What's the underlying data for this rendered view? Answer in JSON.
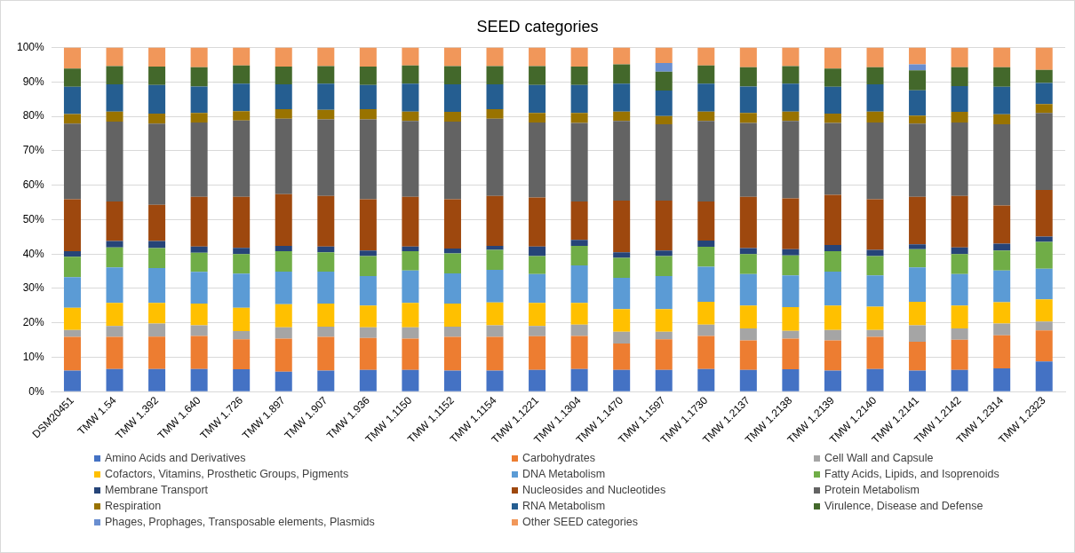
{
  "chart_data": {
    "type": "bar",
    "title": "SEED categories",
    "stacked": true,
    "grid": "y",
    "legend": "bottom",
    "ylim": [
      0,
      100
    ],
    "yticks": [
      {
        "value": 0,
        "label": "0%"
      },
      {
        "value": 10,
        "label": "10%"
      },
      {
        "value": 20,
        "label": "20%"
      },
      {
        "value": 30,
        "label": "30%"
      },
      {
        "value": 40,
        "label": "40%"
      },
      {
        "value": 50,
        "label": "50%"
      },
      {
        "value": 60,
        "label": "60%"
      },
      {
        "value": 70,
        "label": "70%"
      },
      {
        "value": 80,
        "label": "80%"
      },
      {
        "value": 90,
        "label": "90%"
      },
      {
        "value": 100,
        "label": "100%"
      }
    ],
    "categories": [
      "DSM20451",
      "TMW 1.54",
      "TMW 1.392",
      "TMW 1.640",
      "TMW 1.726",
      "TMW 1.897",
      "TMW 1.907",
      "TMW 1.936",
      "TMW 1.1150",
      "TMW 1.1152",
      "TMW 1.1154",
      "TMW 1.1221",
      "TMW 1.1304",
      "TMW 1.1470",
      "TMW 1.1597",
      "TMW 1.1730",
      "TMW 1.2137",
      "TMW 1.2138",
      "TMW 1.2139",
      "TMW 1.2140",
      "TMW 1.2141",
      "TMW 1.2142",
      "TMW 1.2314",
      "TMW 1.2323"
    ],
    "series": [
      {
        "name": "Amino Acids and Derivatives",
        "color": "#4472c4",
        "values": [
          6.1,
          6.6,
          6.6,
          6.6,
          6.5,
          5.8,
          6.1,
          6.3,
          6.3,
          6.1,
          6.1,
          6.3,
          6.6,
          6.3,
          6.3,
          6.6,
          6.3,
          6.5,
          6.1,
          6.6,
          6.1,
          6.3,
          6.8,
          8.8
        ]
      },
      {
        "name": "Carbohydrates",
        "color": "#ed7d31",
        "values": [
          9.8,
          9.3,
          9.4,
          9.6,
          8.7,
          9.6,
          9.8,
          9.3,
          9.1,
          9.8,
          9.8,
          9.8,
          9.6,
          7.7,
          8.9,
          9.6,
          8.6,
          8.9,
          8.8,
          9.3,
          8.4,
          8.8,
          9.6,
          9.0
        ]
      },
      {
        "name": "Cell Wall and Capsule",
        "color": "#a5a5a5",
        "values": [
          2.0,
          3.2,
          3.8,
          3.1,
          2.4,
          3.3,
          3.0,
          3.1,
          3.3,
          3.0,
          3.4,
          3.0,
          3.3,
          3.4,
          2.2,
          3.3,
          3.5,
          2.3,
          3.0,
          2.0,
          4.8,
          3.3,
          3.4,
          2.6
        ]
      },
      {
        "name": "Cofactors, Vitamins, Prosthetic Groups, Pigments",
        "color": "#ffc000",
        "values": [
          6.5,
          6.7,
          6.0,
          6.3,
          6.8,
          6.7,
          6.7,
          6.3,
          7.1,
          6.7,
          6.6,
          6.7,
          6.3,
          6.6,
          6.6,
          6.6,
          6.6,
          6.9,
          7.1,
          6.8,
          6.8,
          6.6,
          6.2,
          6.4
        ]
      },
      {
        "name": "DNA Metabolism",
        "color": "#5b9bd5",
        "values": [
          8.9,
          10.3,
          10.1,
          9.2,
          9.9,
          9.5,
          9.3,
          8.6,
          9.4,
          8.8,
          9.5,
          8.4,
          10.9,
          9.1,
          9.6,
          10.2,
          9.2,
          9.2,
          9.9,
          9.1,
          10.0,
          9.2,
          9.2,
          8.9
        ]
      },
      {
        "name": "Fatty Acids, Lipids, and Isoprenoids",
        "color": "#70ad47",
        "values": [
          5.9,
          5.8,
          5.8,
          5.6,
          5.7,
          5.9,
          5.6,
          5.8,
          5.6,
          5.8,
          5.8,
          5.2,
          5.7,
          5.8,
          5.8,
          5.8,
          5.8,
          5.8,
          5.9,
          5.6,
          5.3,
          5.8,
          5.8,
          7.8
        ]
      },
      {
        "name": "Membrane Transport",
        "color": "#264478",
        "values": [
          1.6,
          1.9,
          2.1,
          1.8,
          1.8,
          1.6,
          1.7,
          1.6,
          1.4,
          1.4,
          1.2,
          2.8,
          1.7,
          1.6,
          1.6,
          1.8,
          1.7,
          1.8,
          1.8,
          1.8,
          1.4,
          1.9,
          2.0,
          1.6
        ]
      },
      {
        "name": "Nucleosides and Nucleotides",
        "color": "#9e480e",
        "values": [
          15.1,
          11.5,
          10.5,
          14.4,
          14.8,
          15.0,
          14.7,
          14.9,
          14.4,
          14.3,
          14.5,
          14.2,
          11.2,
          15.0,
          14.5,
          11.4,
          14.9,
          14.8,
          14.6,
          14.7,
          13.8,
          15.0,
          11.1,
          13.5
        ]
      },
      {
        "name": "Protein Metabolism",
        "color": "#636363",
        "values": [
          22.0,
          23.2,
          23.6,
          21.6,
          22.2,
          21.9,
          22.2,
          23.2,
          22.1,
          22.6,
          22.4,
          21.8,
          22.8,
          23.2,
          22.2,
          23.4,
          21.5,
          22.5,
          20.9,
          22.3,
          21.3,
          21.3,
          23.6,
          22.4
        ]
      },
      {
        "name": "Respiration",
        "color": "#997300",
        "values": [
          2.8,
          2.9,
          2.9,
          2.8,
          2.7,
          2.8,
          2.8,
          3.0,
          2.7,
          2.8,
          2.8,
          2.8,
          2.9,
          2.7,
          2.4,
          2.7,
          2.9,
          2.7,
          2.7,
          3.2,
          2.3,
          3.1,
          2.9,
          2.6
        ]
      },
      {
        "name": "RNA Metabolism",
        "color": "#255e91",
        "values": [
          7.9,
          7.9,
          8.3,
          7.7,
          8.0,
          7.2,
          7.6,
          7.0,
          8.1,
          8.0,
          7.2,
          8.1,
          8.1,
          8.1,
          7.4,
          8.1,
          7.7,
          8.1,
          7.8,
          7.9,
          7.4,
          7.5,
          8.0,
          6.1
        ]
      },
      {
        "name": "Virulence, Disease and Defense",
        "color": "#43682b",
        "values": [
          5.3,
          5.3,
          5.4,
          5.6,
          5.3,
          5.2,
          5.1,
          5.4,
          5.3,
          5.3,
          5.3,
          5.5,
          5.4,
          5.6,
          5.5,
          5.3,
          5.6,
          5.1,
          5.3,
          5.0,
          5.8,
          5.5,
          5.7,
          3.8
        ]
      },
      {
        "name": "Phages, Prophages, Transposable elements, Plasmids",
        "color": "#698ed0",
        "values": [
          0,
          0,
          0,
          0,
          0,
          0,
          0,
          0,
          0,
          0,
          0,
          0,
          0,
          0,
          2.5,
          0,
          0,
          0,
          0,
          0,
          1.7,
          0,
          0,
          0
        ]
      },
      {
        "name": "Other SEED categories",
        "color": "#f1975a",
        "values": [
          6.1,
          5.4,
          5.5,
          5.7,
          5.2,
          5.5,
          5.4,
          5.5,
          5.2,
          5.4,
          5.4,
          5.4,
          5.5,
          4.9,
          4.5,
          5.2,
          5.7,
          5.4,
          6.1,
          5.7,
          4.9,
          5.7,
          5.7,
          6.5
        ]
      }
    ]
  }
}
